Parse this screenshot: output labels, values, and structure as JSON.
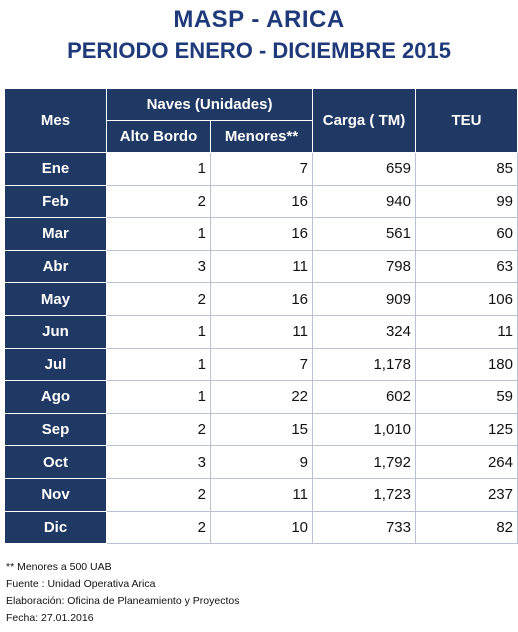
{
  "title": "MASP - ARICA",
  "subtitle": "PERIODO ENERO - DICIEMBRE 2015",
  "headers": {
    "mes": "Mes",
    "naves": "Naves (Unidades)",
    "alto_bordo": "Alto Bordo",
    "menores": "Menores**",
    "carga": "Carga ( TM)",
    "teu": "TEU"
  },
  "rows": [
    {
      "mes": "Ene",
      "alto_bordo": "1",
      "menores": "7",
      "carga": "659",
      "teu": "85"
    },
    {
      "mes": "Feb",
      "alto_bordo": "2",
      "menores": "16",
      "carga": "940",
      "teu": "99"
    },
    {
      "mes": "Mar",
      "alto_bordo": "1",
      "menores": "16",
      "carga": "561",
      "teu": "60"
    },
    {
      "mes": "Abr",
      "alto_bordo": "3",
      "menores": "11",
      "carga": "798",
      "teu": "63"
    },
    {
      "mes": "May",
      "alto_bordo": "2",
      "menores": "16",
      "carga": "909",
      "teu": "106"
    },
    {
      "mes": "Jun",
      "alto_bordo": "1",
      "menores": "11",
      "carga": "324",
      "teu": "11"
    },
    {
      "mes": "Jul",
      "alto_bordo": "1",
      "menores": "7",
      "carga": "1,178",
      "teu": "180"
    },
    {
      "mes": "Ago",
      "alto_bordo": "1",
      "menores": "22",
      "carga": "602",
      "teu": "59"
    },
    {
      "mes": "Sep",
      "alto_bordo": "2",
      "menores": "15",
      "carga": "1,010",
      "teu": "125"
    },
    {
      "mes": "Oct",
      "alto_bordo": "3",
      "menores": "9",
      "carga": "1,792",
      "teu": "264"
    },
    {
      "mes": "Nov",
      "alto_bordo": "2",
      "menores": "11",
      "carga": "1,723",
      "teu": "237"
    },
    {
      "mes": "Dic",
      "alto_bordo": "2",
      "menores": "10",
      "carga": "733",
      "teu": "82"
    }
  ],
  "notes": {
    "note_menores": "** Menores a 500 UAB",
    "fuente": "Fuente : Unidad Operativa Arica",
    "elaboracion": "Elaboración: Oficina de Planeamiento y Proyectos",
    "fecha": "Fecha: 27.01.2016"
  },
  "colors": {
    "header_bg": "#1f3864",
    "title_text": "#1f3a7a"
  }
}
